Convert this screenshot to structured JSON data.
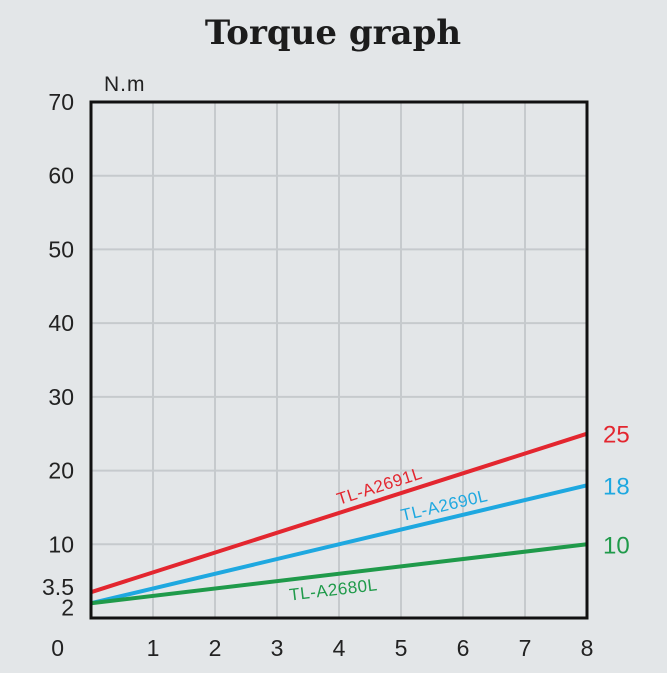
{
  "chart_data": {
    "type": "line",
    "title": "Torque graph",
    "ylabel": "N.m",
    "xlabel": "",
    "xlim": [
      0,
      8
    ],
    "ylim": [
      0,
      70
    ],
    "x_ticks": [
      "1",
      "2",
      "3",
      "4",
      "5",
      "6",
      "7",
      "8"
    ],
    "y_ticks": [
      {
        "label": "70",
        "value": 70
      },
      {
        "label": "60",
        "value": 60
      },
      {
        "label": "50",
        "value": 50
      },
      {
        "label": "40",
        "value": 40
      },
      {
        "label": "30",
        "value": 30
      },
      {
        "label": "20",
        "value": 20
      },
      {
        "label": "10",
        "value": 10
      },
      {
        "label": "3.5",
        "value": 3.5
      },
      {
        "label": "2",
        "value": 2
      },
      {
        "label": "0",
        "value": 0
      }
    ],
    "grid": true,
    "series": [
      {
        "name": "TL-A2691L",
        "color": "#e3262f",
        "x": [
          0,
          8
        ],
        "y": [
          3.5,
          25
        ],
        "end_label": "25"
      },
      {
        "name": "TL-A2690L",
        "color": "#1ea8e0",
        "x": [
          0,
          8
        ],
        "y": [
          2,
          18
        ],
        "end_label": "18"
      },
      {
        "name": "TL-A2680L",
        "color": "#1f9a4a",
        "x": [
          0,
          8
        ],
        "y": [
          2,
          10
        ],
        "end_label": "10"
      }
    ]
  }
}
